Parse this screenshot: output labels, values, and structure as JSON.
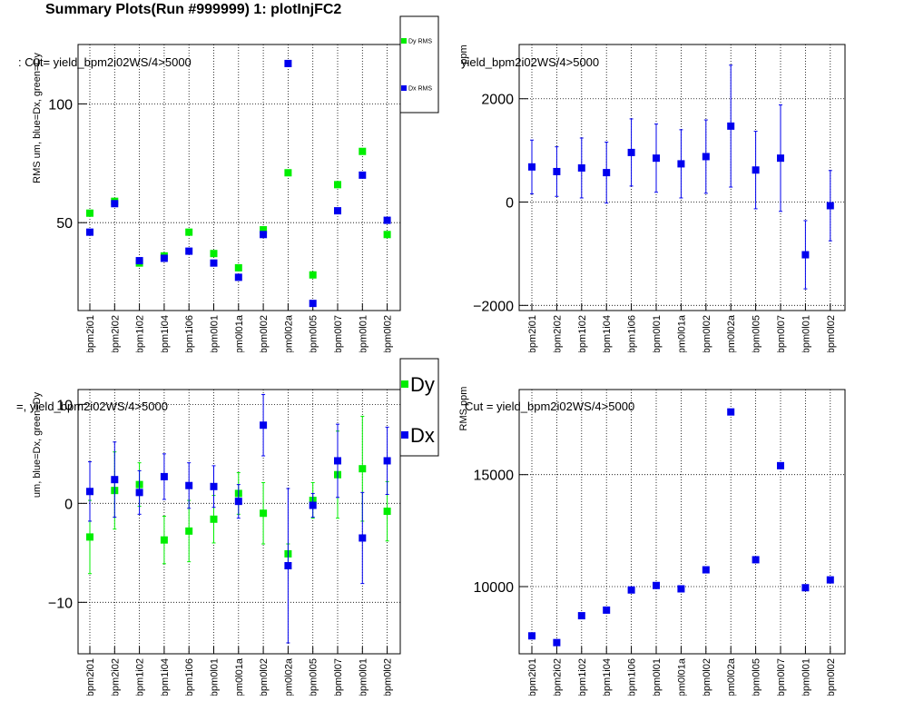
{
  "title": "Summary Plots(Run #999999) 1: plotInjFC2",
  "colors": {
    "green": "#00ee00",
    "blue": "#0000ee"
  },
  "chart_data": [
    {
      "type": "scatter",
      "ylabel": "RMS um, blue=Dx, green=Dy",
      "cut": ": Cut=  yield_bpm2i02WS/4>5000",
      "categories": [
        "bpm2i01",
        "bpm2i02",
        "bpm1i02",
        "bpm1i04",
        "bpm1i06",
        "bpm0l01",
        "bpm0l01a",
        "bpm0l02",
        "bpm0l02a",
        "bpm0l05",
        "bpm0l07",
        "bpm0l01",
        "bpm0l02"
      ],
      "tick_labels": [
        "bpm2i01",
        "bpm2i02",
        "bpm1i02",
        "bpm1i04",
        "bpm1i06",
        "bpm0l01",
        "bpm0l01a",
        "bpm0l02",
        "bpm0l02a",
        "bpm0l05",
        "bpm0l07",
        "bpm0l01",
        "bpm0l02"
      ],
      "ylim": [
        13,
        125
      ],
      "yticks": [
        "50",
        "100"
      ],
      "ytick_values": [
        50,
        100
      ],
      "grid": true,
      "legend": "top-right",
      "series": [
        {
          "name": "Dy RMS",
          "color": "#00ee00",
          "values": [
            54,
            59,
            33,
            36,
            46,
            37,
            31,
            47,
            71,
            28,
            66,
            80,
            45
          ]
        },
        {
          "name": "Dx RMS",
          "color": "#0000ee",
          "values": [
            46,
            58,
            34,
            35,
            38,
            33,
            27,
            45,
            117,
            16,
            55,
            70,
            51
          ]
        }
      ]
    },
    {
      "type": "scatter",
      "ylabel": "ppm",
      "cut": "yield_bpm2i02WS/4>5000",
      "categories": [
        "bpm2i01",
        "bpm2i02",
        "bpm1i02",
        "bpm1i04",
        "bpm1i06",
        "bpm0l01",
        "bpm0l01a",
        "bpm0l02",
        "bpm0l02a",
        "bpm0l05",
        "bpm0l07",
        "bpm0l01",
        "bpm0l02"
      ],
      "tick_labels": [
        "bpm2i01",
        "bpm2i02",
        "bpm1i02",
        "bpm1i04",
        "bpm1i06",
        "bpm0l01",
        "bpm0l01a",
        "bpm0l02",
        "bpm0l02a",
        "bpm0l05",
        "bpm0l07",
        "bpm0l01",
        "bpm0l02"
      ],
      "ylim": [
        -2100,
        3050
      ],
      "yticks": [
        "−2000",
        "0",
        "2000"
      ],
      "ytick_values": [
        -2000,
        0,
        2000
      ],
      "grid": true,
      "series": [
        {
          "name": "",
          "color": "#0000ee",
          "values": [
            680,
            590,
            660,
            570,
            960,
            850,
            740,
            880,
            1470,
            620,
            850,
            -1020,
            -70
          ],
          "errors": [
            520,
            480,
            580,
            590,
            650,
            660,
            660,
            710,
            1180,
            750,
            1030,
            660,
            680
          ]
        }
      ]
    },
    {
      "type": "scatter",
      "ylabel": "um, blue=Dx, green=Dy",
      "cut": "=, yield_bpm2i02WS/4>5000",
      "categories": [
        "bpm2i01",
        "bpm2i02",
        "bpm1i02",
        "bpm1i04",
        "bpm1i06",
        "bpm0l01",
        "bpm0l01a",
        "bpm0l02",
        "bpm0l02a",
        "bpm0l05",
        "bpm0l07",
        "bpm0l01",
        "bpm0l02"
      ],
      "tick_labels": [
        "bpm2i01",
        "bpm2i02",
        "bpm1i02",
        "bpm1i04",
        "bpm1i06",
        "bpm0l01",
        "bpm0l01a",
        "bpm0l02",
        "bpm0l02a",
        "bpm0l05",
        "bpm0l07",
        "bpm0l01",
        "bpm0l02"
      ],
      "ylim": [
        -15.2,
        11.5
      ],
      "yticks": [
        "−10",
        "0",
        "10"
      ],
      "ytick_values": [
        -10,
        0,
        10
      ],
      "grid": true,
      "legend": "top-right",
      "series": [
        {
          "name": "Dy",
          "color": "#00ee00",
          "values": [
            -3.4,
            1.3,
            1.9,
            -3.7,
            -2.8,
            -1.6,
            1.0,
            -1.0,
            -5.1,
            0.3,
            2.9,
            3.5,
            -0.8
          ],
          "errors": [
            3.7,
            3.9,
            2.2,
            2.4,
            3.1,
            2.4,
            2.1,
            3.1,
            1.0,
            1.8,
            4.4,
            5.3,
            3.0
          ]
        },
        {
          "name": "Dx",
          "color": "#0000ee",
          "values": [
            1.2,
            2.4,
            1.1,
            2.7,
            1.8,
            1.7,
            0.2,
            7.9,
            -6.3,
            -0.2,
            4.3,
            -3.5,
            4.3
          ],
          "errors": [
            3.0,
            3.8,
            2.2,
            2.3,
            2.3,
            2.1,
            1.7,
            3.1,
            7.8,
            1.2,
            3.7,
            4.6,
            3.4
          ]
        }
      ]
    },
    {
      "type": "scatter",
      "ylabel": "RMS ppm",
      "cut": "Cut =  yield_bpm2i02WS/4>5000",
      "categories": [
        "bpm2i01",
        "bpm2i02",
        "bpm1i02",
        "bpm1i04",
        "bpm1i06",
        "bpm0l01",
        "bpm0l01a",
        "bpm0l02",
        "bpm0l02a",
        "bpm0l05",
        "bpm0l07",
        "bpm0l01",
        "bpm0l02"
      ],
      "tick_labels": [
        "bpm2i01",
        "bpm2i02",
        "bpm1i02",
        "bpm1i04",
        "bpm1i06",
        "bpm0l01",
        "bpm0l01a",
        "bpm0l02",
        "bpm0l02a",
        "bpm0l05",
        "bpm0l07",
        "bpm0l01",
        "bpm0l02"
      ],
      "ylim": [
        7000,
        18800
      ],
      "yticks": [
        "10000",
        "15000"
      ],
      "ytick_values": [
        10000,
        15000
      ],
      "grid": true,
      "series": [
        {
          "name": "",
          "color": "#0000ee",
          "values": [
            7800,
            7500,
            8700,
            8950,
            9850,
            10050,
            9900,
            10750,
            17800,
            11200,
            15400,
            9950,
            10300
          ]
        }
      ]
    }
  ]
}
